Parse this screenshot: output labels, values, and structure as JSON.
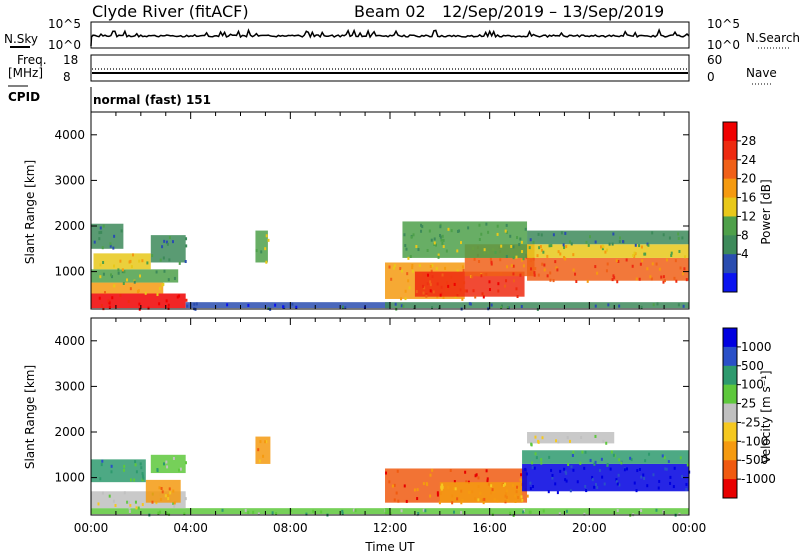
{
  "header": {
    "station": "Clyde River (fitACF)",
    "beam": "Beam 02",
    "dates": "12/Sep/2019 – 13/Sep/2019"
  },
  "panels": {
    "nsky": {
      "left_label": "N.Sky",
      "right_label": "N.Search",
      "left_ticks": [
        "10^5",
        "10^0"
      ],
      "right_ticks": [
        "10^5",
        "10^0"
      ]
    },
    "freq": {
      "left_label_top": "Freq.",
      "left_label_bottom": "[MHz]",
      "right_label": "Nave",
      "left_ticks": [
        "18",
        "8"
      ],
      "right_ticks": [
        "60",
        "0"
      ]
    },
    "cpid": {
      "label": "CPID",
      "mode_text": "normal (fast) 151"
    }
  },
  "colors": {
    "power_scale": [
      "#0a14f0",
      "#2a4db0",
      "#3d8a5a",
      "#4ea04a",
      "#e8c81a",
      "#f59a10",
      "#f06018",
      "#ee2a10",
      "#f00000"
    ],
    "velocity_scale": [
      "#0000e0",
      "#2a50c8",
      "#2e9a6e",
      "#5ec83c",
      "#c0c0c0",
      "#f5c820",
      "#f59a10",
      "#f05a10",
      "#e80000"
    ],
    "ground_scatter": "#a8a8a8"
  },
  "chart_data": [
    {
      "type": "heatmap",
      "name": "power",
      "xlabel": "",
      "ylabel": "Slant Range [km]",
      "xlim": [
        0,
        24
      ],
      "ylim": [
        180,
        4500
      ],
      "yticks": [
        1000,
        2000,
        3000,
        4000
      ],
      "colorbar_label": "Power [dB]",
      "colorbar_ticks": [
        "4",
        "8",
        "12",
        "16",
        "20",
        "24",
        "28"
      ],
      "regions": [
        {
          "t0": 0.0,
          "t1": 3.8,
          "r0": 200,
          "r1": 520,
          "level": 8
        },
        {
          "t0": 0.0,
          "t1": 2.9,
          "r0": 520,
          "r1": 760,
          "level": 5
        },
        {
          "t0": 0.0,
          "t1": 3.5,
          "r0": 760,
          "r1": 1050,
          "level": 3
        },
        {
          "t0": 0.1,
          "t1": 2.4,
          "r0": 1050,
          "r1": 1400,
          "level": 4
        },
        {
          "t0": 2.4,
          "t1": 3.8,
          "r0": 1200,
          "r1": 1800,
          "level": 2
        },
        {
          "t0": 0.0,
          "t1": 1.3,
          "r0": 1500,
          "r1": 2050,
          "level": 2
        },
        {
          "t0": 3.8,
          "t1": 12.0,
          "r0": 200,
          "r1": 330,
          "level": 1
        },
        {
          "t0": 6.6,
          "t1": 7.1,
          "r0": 1200,
          "r1": 1900,
          "level": 3
        },
        {
          "t0": 11.8,
          "t1": 24.0,
          "r0": 200,
          "r1": 330,
          "level": 2
        },
        {
          "t0": 11.8,
          "t1": 15.0,
          "r0": 400,
          "r1": 1200,
          "level": 5
        },
        {
          "t0": 13.0,
          "t1": 17.4,
          "r0": 450,
          "r1": 1000,
          "level": 7
        },
        {
          "t0": 15.0,
          "t1": 17.8,
          "r0": 900,
          "r1": 1600,
          "level": 6
        },
        {
          "t0": 17.5,
          "t1": 24.0,
          "r0": 800,
          "r1": 1300,
          "level": 6
        },
        {
          "t0": 17.5,
          "t1": 24.0,
          "r0": 1300,
          "r1": 1600,
          "level": 4
        },
        {
          "t0": 17.5,
          "t1": 24.0,
          "r0": 1600,
          "r1": 1900,
          "level": 2
        },
        {
          "t0": 12.5,
          "t1": 17.5,
          "r0": 1300,
          "r1": 2100,
          "level": 3
        }
      ]
    },
    {
      "type": "heatmap",
      "name": "velocity",
      "xlabel": "Time UT",
      "ylabel": "Slant Range [km]",
      "xlim": [
        0,
        24
      ],
      "ylim": [
        180,
        4500
      ],
      "xticks": [
        "00:00",
        "04:00",
        "08:00",
        "12:00",
        "16:00",
        "20:00",
        "00:00"
      ],
      "yticks": [
        1000,
        2000,
        3000,
        4000
      ],
      "colorbar_label": "Velocity [m s⁻¹]",
      "colorbar_ticks": [
        "1000",
        "500",
        "100",
        "25",
        "-25",
        "-100",
        "-500",
        "-1000"
      ],
      "regions": [
        {
          "t0": 0.0,
          "t1": 12.0,
          "r0": 200,
          "r1": 330,
          "level": 3
        },
        {
          "t0": 0.0,
          "t1": 3.8,
          "r0": 330,
          "r1": 700,
          "level": 4
        },
        {
          "t0": 2.2,
          "t1": 3.6,
          "r0": 450,
          "r1": 950,
          "level": 6
        },
        {
          "t0": 0.0,
          "t1": 2.2,
          "r0": 900,
          "r1": 1400,
          "level": 2
        },
        {
          "t0": 2.4,
          "t1": 3.8,
          "r0": 1100,
          "r1": 1500,
          "level": 3
        },
        {
          "t0": 6.6,
          "t1": 7.2,
          "r0": 1300,
          "r1": 1900,
          "level": 6
        },
        {
          "t0": 11.8,
          "t1": 17.5,
          "r0": 450,
          "r1": 1200,
          "level": 7
        },
        {
          "t0": 14.0,
          "t1": 17.3,
          "r0": 450,
          "r1": 900,
          "level": 6
        },
        {
          "t0": 17.3,
          "t1": 24.0,
          "r0": 700,
          "r1": 1300,
          "level": 0
        },
        {
          "t0": 17.3,
          "t1": 24.0,
          "r0": 1300,
          "r1": 1600,
          "level": 2
        },
        {
          "t0": 17.5,
          "t1": 21.0,
          "r0": 1750,
          "r1": 2000,
          "level": 4
        },
        {
          "t0": 11.8,
          "t1": 24.0,
          "r0": 200,
          "r1": 330,
          "level": 3
        }
      ]
    }
  ]
}
